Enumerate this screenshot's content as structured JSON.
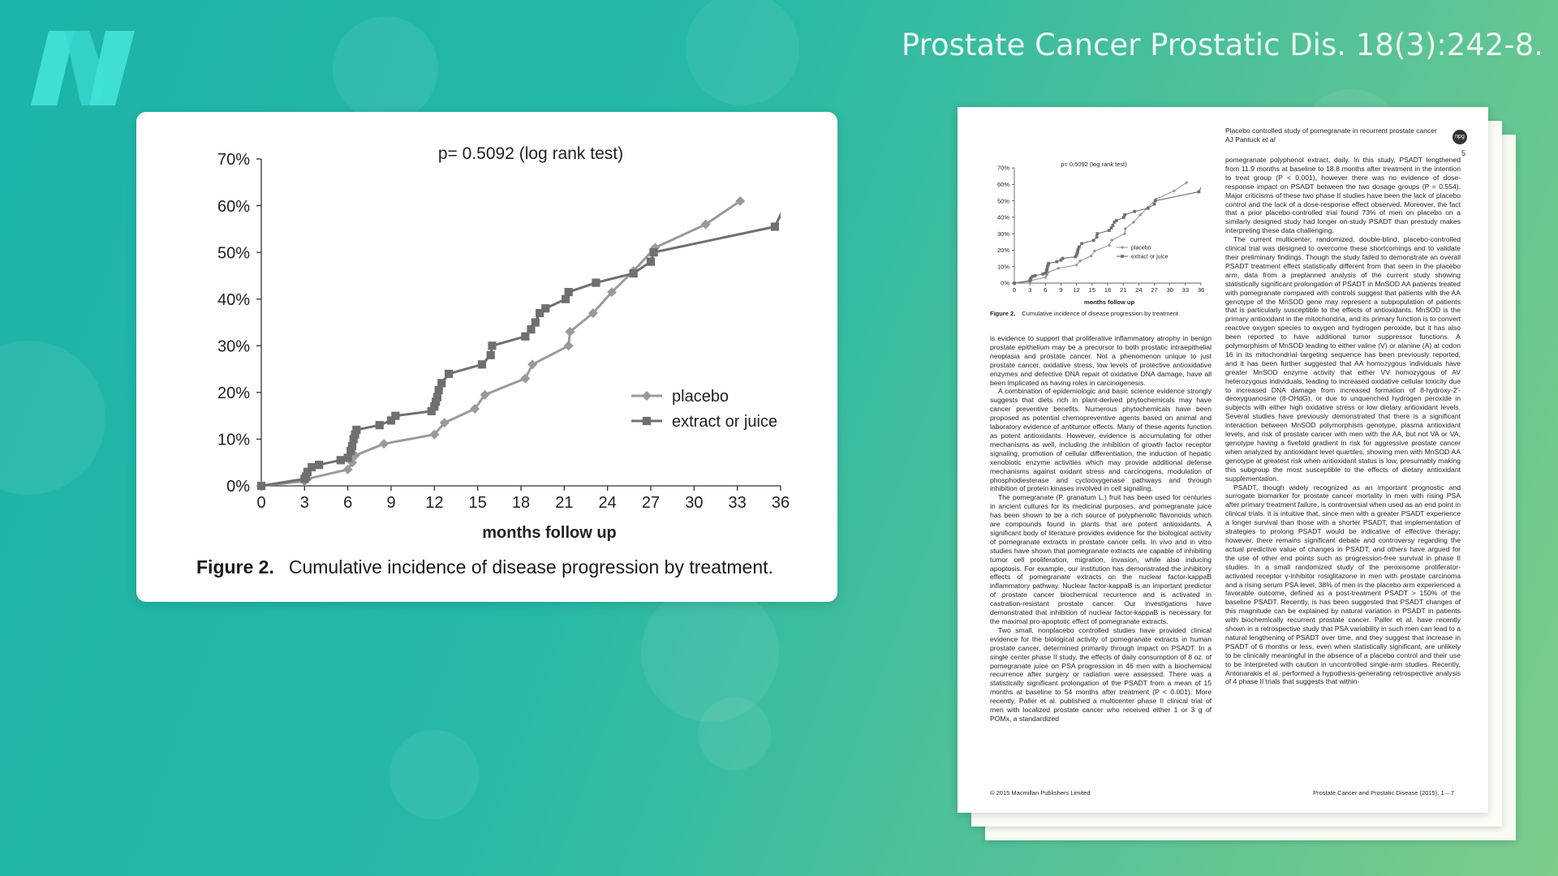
{
  "citation": "Prostate Cancer Prostatic Dis. 18(3):242-8.",
  "logo": {
    "icon": "n-logo-icon",
    "color": "#3fe0d6"
  },
  "figure": {
    "label": "Figure 2.",
    "caption": "Cumulative incidence of disease progression by treatment."
  },
  "chart_data": {
    "type": "line",
    "title": "p= 0.5092 (log rank test)",
    "xlabel": "months follow up",
    "ylabel": "",
    "xlim": [
      0,
      36
    ],
    "ylim": [
      0,
      70
    ],
    "xticks": [
      0,
      3,
      6,
      9,
      12,
      15,
      18,
      21,
      24,
      27,
      30,
      33,
      36
    ],
    "yticks": [
      0,
      10,
      20,
      30,
      40,
      50,
      60,
      70
    ],
    "ytick_labels": [
      "0%",
      "10%",
      "20%",
      "30%",
      "40%",
      "50%",
      "60%",
      "70%"
    ],
    "grid": false,
    "legend_position": "right",
    "series": [
      {
        "name": "placebo",
        "marker": "diamond",
        "color": "#9a9a9a",
        "points": [
          [
            0,
            0
          ],
          [
            3,
            1
          ],
          [
            3.2,
            1.5
          ],
          [
            6,
            3.5
          ],
          [
            6.3,
            5
          ],
          [
            6.5,
            6.5
          ],
          [
            8.5,
            9
          ],
          [
            12,
            11
          ],
          [
            12.7,
            13.5
          ],
          [
            14.8,
            16.5
          ],
          [
            15.5,
            19.5
          ],
          [
            18.3,
            23
          ],
          [
            18.8,
            26
          ],
          [
            21.3,
            30
          ],
          [
            21.4,
            33
          ],
          [
            23,
            37
          ],
          [
            24.3,
            41.5
          ],
          [
            25.8,
            46
          ],
          [
            27.3,
            51
          ],
          [
            30.8,
            56
          ],
          [
            33.2,
            61
          ]
        ]
      },
      {
        "name": "extract or juice",
        "marker": "square",
        "color": "#6f6f6f",
        "points": [
          [
            0,
            0
          ],
          [
            3,
            1.5
          ],
          [
            3.1,
            2
          ],
          [
            3.2,
            3
          ],
          [
            3.5,
            4
          ],
          [
            4,
            4.5
          ],
          [
            5.5,
            5.5
          ],
          [
            6,
            6
          ],
          [
            6.2,
            7.5
          ],
          [
            6.3,
            8.5
          ],
          [
            6.4,
            10
          ],
          [
            6.5,
            11
          ],
          [
            6.6,
            12
          ],
          [
            8.2,
            13
          ],
          [
            9,
            14
          ],
          [
            9.3,
            15
          ],
          [
            11.8,
            16
          ],
          [
            12,
            17
          ],
          [
            12.1,
            18
          ],
          [
            12.2,
            19
          ],
          [
            12.3,
            20.5
          ],
          [
            12.5,
            22
          ],
          [
            13,
            24
          ],
          [
            15.3,
            26
          ],
          [
            15.9,
            28
          ],
          [
            16,
            30
          ],
          [
            18.3,
            32
          ],
          [
            18.7,
            33.5
          ],
          [
            19,
            35
          ],
          [
            19.3,
            37
          ],
          [
            19.7,
            38
          ],
          [
            21.1,
            40
          ],
          [
            21.3,
            41.5
          ],
          [
            23.2,
            43.5
          ],
          [
            25.8,
            45.5
          ],
          [
            27,
            48
          ],
          [
            27.2,
            50
          ],
          [
            35.6,
            55.5
          ],
          [
            36.3,
            60
          ]
        ]
      }
    ]
  },
  "paper": {
    "header_line1": "Placebo controlled study of pomegranate in recurrent prostate cancer",
    "header_line2": "AJ Pantuck ",
    "header_etal": "et al",
    "page_number": "5",
    "badge": "npg",
    "mini_caption": "Cumulative incidence of disease progression by treatment.",
    "footer_left": "© 2015 Macmillan Publishers Limited",
    "footer_right": "Prostate Cancer and Prostatic Disease (2015), 1 – 7",
    "left_paragraphs": [
      "is evidence to support that proliferative inflammatory atrophy in benign prostate epithelium may be a precursor to both prostatic intraepithelial neoplasia and prostate cancer. Not a phenomenon unique to just prostate cancer, oxidative stress, low levels of protective antioxidative enzymes and defective DNA repair of oxidative DNA damage, have all been implicated as having roles in carcinogenesis.",
      "A combination of epidemiologic and basic science evidence strongly suggests that diets rich in plant-derived phytochemicals may have cancer preventive benefits. Numerous phytochemicals have been proposed as potential chemopreventive agents based on animal and laboratory evidence of antitumor effects. Many of these agents function as potent antioxidants. However, evidence is accumulating for other mechanisms as well, including the inhibition of growth factor receptor signaling, promotion of cellular differentiation, the induction of hepatic xenobiotic enzyme activities which may provide additional defense mechanisms against oxidant stress and carcinogens, modulation of phosphodiesterase and cyclooxygenase pathways and through inhibition of protein kinases involved in cell signaling.",
      "The pomegranate (P. granatum L.) fruit has been used for centuries in ancient cultures for its medicinal purposes, and pomegranate juice has been shown to be a rich source of polyphenolic flavonoids which are compounds found in plants that are potent antioxidants. A significant body of literature provides evidence for the biological activity of pomegranate extracts in prostate cancer cells. In vivo and in vitro studies have shown that pomegranate extracts are capable of inhibiting tumor cell proliferation, migration, invasion, while also inducing apoptosis. For example, our institution has demonstrated the inhibitory effects of pomegranate extracts on the nuclear factor-kappaB inflammatory pathway. Nuclear factor-kappaB is an important predictor of prostate cancer biochemical recurrence and is activated in castration-resistant prostate cancer. Our investigations have demonstrated that inhibition of nuclear factor-kappaB is necessary for the maximal pro-apoptotic effect of pomegranate extracts.",
      "Two small, nonplacebo controlled studies have provided clinical evidence for the biological activity of pomegranate extracts in human prostate cancer, determined primarily through impact on PSADT. In a single center phase II study, the effects of daily consumption of 8 oz. of pomegranate juice on PSA progression in 46 men with a biochemical recurrence after surgery or radiation were assessed. There was a statistically significant prolongation of the PSADT from a mean of 15 months at baseline to 54 months after treatment (P < 0.001). More recently, Paller et al. published a multicenter phase II clinical trial of men with localized prostate cancer who received either 1 or 3 g of POMx, a standardized"
    ],
    "right_paragraphs": [
      "pomegranate polyphenol extract, daily. In this study, PSADT lengthened from 11.9 months at baseline to 18.8 months after treatment in the intention to treat group (P < 0.001), however there was no evidence of dose-response impact on PSADT between the two dosage groups (P = 0.554). Major criticisms of these two phase II studies have been the lack of placebo control and the lack of a dose-response effect observed. Moreover, the fact that a prior placebo-controlled trial found 73% of men on placebo on a similarly designed study had longer on-study PSADT than prestudy makes interpreting these data challenging.",
      "The current multicenter, randomized, double-blind, placebo-controlled clinical trial was designed to overcome these shortcomings and to validate their preliminary findings. Though the study failed to demonstrate an overall PSADT treatment effect statistically different from that seen in the placebo arm, data from a preplanned analysis of the current study showing statistically significant prolongation of PSADT in MnSOD AA patients treated with pomegranate compared with controls suggest that patients with the AA genotype of the MnSOD gene may represent a subpopulation of patients that is particularly susceptible to the effects of antioxidants. MnSOD is the primary antioxidant in the mitochondria, and its primary function is to convert reactive oxygen species to oxygen and hydrogen peroxide, but it has also been reported to have additional tumor suppressor functions. A polymorphism of MnSOD leading to either valine (V) or alanine (A) at codon 16 in its mitochondrial targeting sequence has been previously reported, and it has been further suggested that AA homozygous individuals have greater MnSOD enzyme activity that either VV homozygous of AV heterozygous individuals, leading to increased oxidative cellular toxicity due to increased DNA damage from increased formation of 8-hydroxy-2'-deoxyguanosine (8-OHdG), or due to unquenched hydrogen peroxide in subjects with either high oxidative stress or low dietary antioxidant levels. Several studies have previously demonstrated that there is a significant interaction between MnSOD polymorphism genotype, plasma antioxidant levels, and risk of prostate cancer with men with the AA, but not VA or VA, genotype having a fivefold gradient in risk for aggressive prostate cancer when analyzed by antioxidant level quartiles, showing men with MnSOD AA genotype at greatest risk when antioxidant status is low, presumably making this subgroup the most susceptible to the effects of dietary antioxidant supplementation.",
      "PSADT, though widely recognized as an important prognostic and surrogate biomarker for prostate cancer mortality in men with rising PSA after primary treatment failure, is controversial when used as an end point in clinical trials. It is intuitive that, since men with a greater PSADT experience a longer survival than those with a shorter PSADT, that implementation of strategies to prolong PSADT would be indicative of effective therapy; however, there remains significant debate and controversy regarding the actual predictive value of changes in PSADT, and others have argued for the use of other end points such as progression-free survival in phase II studies. In a small randomized study of the peroxisome proliferator-activated receptor γ-inhibitor rosiglitazone in men with prostate carcinoma and a rising serum PSA level, 38% of men in the placebo arm experienced a favorable outcome, defined as a post-treatment PSADT > 150% of the baseline PSADT. Recently, is has been suggested that PSADT changes of this magnitude can be explained by natural variation in PSADT in patients with biochemically recurrent prostate cancer. Paller et al. have recently shown in a retrospective study that PSA variability in such men can lead to a natural lengthening of PSADT over time, and they suggest that increase in PSADT of 6 months or less, even when statistically significant, are unlikely to be clinically meaningful in the absence of a placebo control and their use to be interpreted with caution in uncontrolled single-arm studies. Recently, Antonarakis et al. performed a hypothesis-generating retrospective analysis of 4 phase II trials that suggests that within-"
    ]
  }
}
